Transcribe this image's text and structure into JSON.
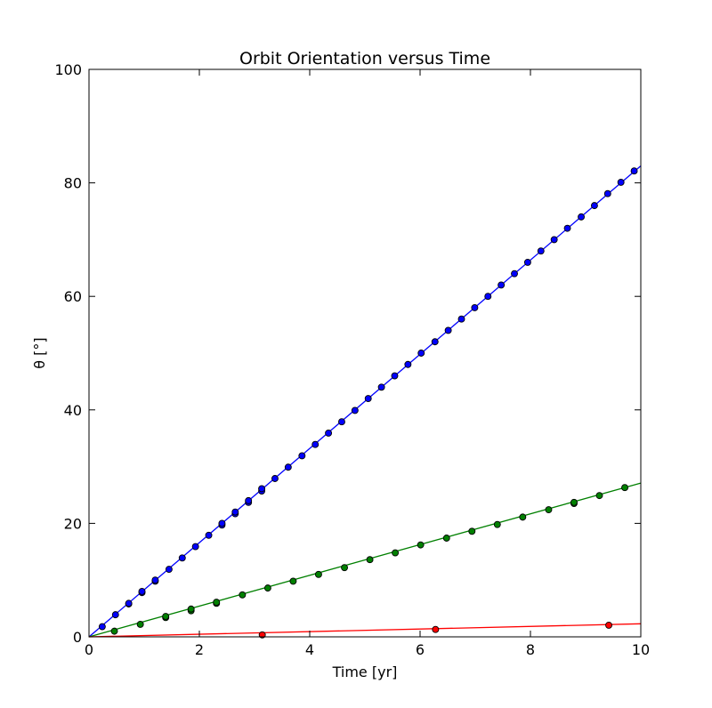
{
  "chart_data": {
    "type": "line",
    "title": "Orbit Orientation versus Time",
    "xlabel": "Time [yr]",
    "ylabel": "θ [°]",
    "xlim": [
      0,
      10
    ],
    "ylim": [
      0,
      100
    ],
    "xticks": [
      0,
      2,
      4,
      6,
      8,
      10
    ],
    "yticks": [
      0,
      20,
      40,
      60,
      80,
      100
    ],
    "grid": false,
    "series": [
      {
        "color": "#0000ff",
        "line": [
          [
            0,
            0
          ],
          [
            10,
            83.0
          ]
        ],
        "points": [
          [
            0.24,
            1.8
          ],
          [
            0.48,
            3.9
          ],
          [
            0.72,
            5.8
          ],
          [
            0.72,
            5.9
          ],
          [
            0.96,
            7.8
          ],
          [
            0.96,
            8.0
          ],
          [
            1.2,
            9.8
          ],
          [
            1.2,
            10.0
          ],
          [
            1.45,
            11.9
          ],
          [
            1.69,
            13.9
          ],
          [
            1.93,
            15.9
          ],
          [
            2.17,
            17.9
          ],
          [
            2.41,
            19.7
          ],
          [
            2.41,
            20.0
          ],
          [
            2.65,
            21.7
          ],
          [
            2.65,
            22.0
          ],
          [
            2.89,
            23.7
          ],
          [
            2.89,
            24.0
          ],
          [
            3.13,
            25.7
          ],
          [
            3.13,
            26.1
          ],
          [
            3.37,
            27.9
          ],
          [
            3.61,
            29.9
          ],
          [
            3.86,
            31.9
          ],
          [
            4.1,
            33.9
          ],
          [
            4.34,
            35.9
          ],
          [
            4.58,
            37.9
          ],
          [
            4.82,
            39.9
          ],
          [
            5.06,
            42.0
          ],
          [
            5.3,
            44.0
          ],
          [
            5.54,
            46.0
          ],
          [
            5.78,
            48.0
          ],
          [
            6.02,
            50.0
          ],
          [
            6.27,
            52.0
          ],
          [
            6.51,
            54.0
          ],
          [
            6.75,
            56.0
          ],
          [
            6.99,
            58.0
          ],
          [
            7.23,
            60.0
          ],
          [
            7.47,
            62.0
          ],
          [
            7.71,
            64.0
          ],
          [
            7.95,
            66.0
          ],
          [
            8.19,
            68.0
          ],
          [
            8.43,
            70.0
          ],
          [
            8.67,
            72.0
          ],
          [
            8.92,
            74.0
          ],
          [
            9.16,
            76.0
          ],
          [
            9.4,
            78.1
          ],
          [
            9.64,
            80.1
          ],
          [
            9.88,
            82.1
          ]
        ]
      },
      {
        "color": "#008000",
        "line": [
          [
            0,
            0
          ],
          [
            10,
            27.1
          ]
        ],
        "points": [
          [
            0.46,
            1.0
          ],
          [
            0.93,
            2.2
          ],
          [
            1.39,
            3.4
          ],
          [
            1.39,
            3.6
          ],
          [
            1.85,
            4.6
          ],
          [
            1.85,
            4.9
          ],
          [
            2.31,
            5.9
          ],
          [
            2.31,
            6.1
          ],
          [
            2.78,
            7.4
          ],
          [
            3.24,
            8.6
          ],
          [
            3.7,
            9.8
          ],
          [
            4.16,
            11.0
          ],
          [
            4.63,
            12.2
          ],
          [
            5.09,
            13.6
          ],
          [
            5.55,
            14.8
          ],
          [
            6.01,
            16.2
          ],
          [
            6.48,
            17.4
          ],
          [
            6.94,
            18.6
          ],
          [
            7.4,
            19.8
          ],
          [
            7.86,
            21.1
          ],
          [
            8.33,
            22.4
          ],
          [
            8.79,
            23.5
          ],
          [
            8.79,
            23.7
          ],
          [
            9.25,
            24.9
          ],
          [
            9.71,
            26.3
          ]
        ]
      },
      {
        "color": "#ff0000",
        "line": [
          [
            0,
            0
          ],
          [
            10,
            2.3
          ]
        ],
        "points": [
          [
            3.14,
            0.35
          ],
          [
            6.28,
            1.3
          ],
          [
            9.42,
            2.05
          ]
        ]
      }
    ]
  }
}
